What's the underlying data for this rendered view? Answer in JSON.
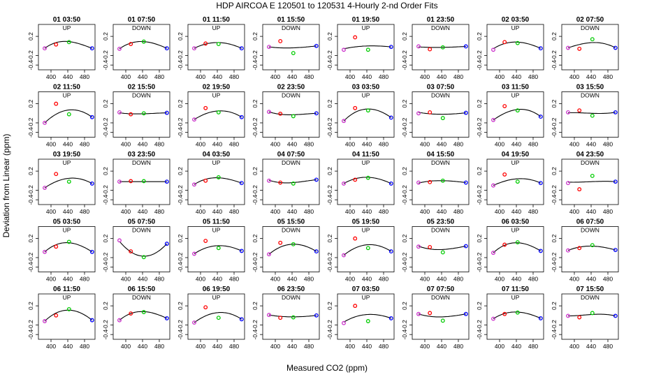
{
  "figure": {
    "title": "HDP   AIRCOA E   120501 to 120531   4-Hourly 2-nd Order Fits",
    "xlabel": "Measured CO2 (ppm)",
    "ylabel": "Deviation from Linear (ppm)"
  },
  "axes": {
    "xlim": [
      370,
      505
    ],
    "ylim": [
      -0.5,
      0.45
    ],
    "xticks": [
      400,
      440,
      480
    ],
    "yticks": [
      0.2,
      -0.2,
      -0.4
    ],
    "ytick_labels": [
      "0.2",
      "-0.2",
      "-0.4"
    ]
  },
  "standards_x": [
    385,
    412,
    443,
    498
  ],
  "colors": {
    "std1": "#cc33cc",
    "std2": "#ff0000",
    "std3": "#00cc00",
    "std4": "#0000ff",
    "curve": "#000000"
  },
  "chart_data": [
    {
      "type": "scatter",
      "title": "01 03:50",
      "label": "UP",
      "y": [
        -0.05,
        0.03,
        0.08,
        -0.05
      ],
      "curve": [
        -0.05,
        0.07,
        0.09,
        -0.05
      ]
    },
    {
      "type": "scatter",
      "title": "01 07:50",
      "label": "DOWN",
      "y": [
        -0.06,
        0.04,
        0.09,
        -0.05
      ],
      "curve": [
        -0.06,
        0.06,
        0.09,
        -0.05
      ]
    },
    {
      "type": "scatter",
      "title": "01 11:50",
      "label": "UP",
      "y": [
        -0.05,
        0.05,
        0.04,
        -0.05
      ],
      "curve": [
        -0.05,
        0.04,
        0.07,
        -0.05
      ]
    },
    {
      "type": "scatter",
      "title": "01 15:50",
      "label": "DOWN",
      "y": [
        -0.02,
        0.1,
        -0.15,
        0.0
      ],
      "curve": [
        -0.02,
        -0.04,
        -0.04,
        0.0
      ]
    },
    {
      "type": "scatter",
      "title": "01 19:50",
      "label": "UP",
      "y": [
        -0.08,
        0.18,
        -0.08,
        -0.02
      ],
      "curve": [
        -0.06,
        -0.02,
        0.0,
        -0.02
      ]
    },
    {
      "type": "scatter",
      "title": "01 23:50",
      "label": "DOWN",
      "y": [
        -0.01,
        -0.07,
        -0.03,
        -0.01
      ],
      "curve": [
        -0.02,
        -0.03,
        -0.03,
        -0.01
      ]
    },
    {
      "type": "scatter",
      "title": "02 03:50",
      "label": "UP",
      "y": [
        -0.08,
        0.08,
        0.06,
        -0.05
      ],
      "curve": [
        -0.06,
        0.05,
        0.08,
        -0.05
      ]
    },
    {
      "type": "scatter",
      "title": "02 07:50",
      "label": "DOWN",
      "y": [
        -0.04,
        -0.06,
        0.14,
        -0.04
      ],
      "curve": [
        -0.04,
        0.03,
        0.07,
        -0.04
      ]
    },
    {
      "type": "scatter",
      "title": "02 11:50",
      "label": "UP",
      "y": [
        -0.2,
        0.2,
        -0.02,
        -0.08
      ],
      "curve": [
        -0.2,
        -0.02,
        0.07,
        -0.08
      ]
    },
    {
      "type": "scatter",
      "title": "02 15:50",
      "label": "DOWN",
      "y": [
        0.02,
        -0.02,
        0.0,
        0.01
      ],
      "curve": [
        0.01,
        -0.01,
        -0.01,
        0.01
      ]
    },
    {
      "type": "scatter",
      "title": "02 19:50",
      "label": "UP",
      "y": [
        -0.13,
        0.11,
        0.02,
        -0.08
      ],
      "curve": [
        -0.13,
        -0.01,
        0.05,
        -0.08
      ]
    },
    {
      "type": "scatter",
      "title": "02 23:50",
      "label": "DOWN",
      "y": [
        0.03,
        -0.01,
        -0.06,
        0.0
      ],
      "curve": [
        0.03,
        -0.02,
        -0.03,
        0.0
      ]
    },
    {
      "type": "scatter",
      "title": "03 03:50",
      "label": "UP",
      "y": [
        -0.16,
        0.11,
        0.06,
        -0.09
      ],
      "curve": [
        -0.16,
        0.02,
        0.09,
        -0.09
      ]
    },
    {
      "type": "scatter",
      "title": "03 07:50",
      "label": "DOWN",
      "y": [
        0.0,
        0.02,
        -0.1,
        0.01
      ],
      "curve": [
        0.02,
        -0.01,
        -0.02,
        0.01
      ]
    },
    {
      "type": "scatter",
      "title": "03 11:50",
      "label": "UP",
      "y": [
        -0.14,
        0.15,
        0.06,
        -0.07
      ],
      "curve": [
        -0.14,
        0.0,
        0.08,
        -0.07
      ]
    },
    {
      "type": "scatter",
      "title": "03 15:50",
      "label": "DOWN",
      "y": [
        0.02,
        0.06,
        -0.05,
        0.02
      ],
      "curve": [
        0.01,
        0.01,
        0.0,
        0.02
      ]
    },
    {
      "type": "scatter",
      "title": "03 19:50",
      "label": "UP",
      "y": [
        -0.15,
        0.14,
        -0.02,
        -0.06
      ],
      "curve": [
        -0.15,
        -0.02,
        0.05,
        -0.06
      ]
    },
    {
      "type": "scatter",
      "title": "03 23:50",
      "label": "DOWN",
      "y": [
        -0.02,
        -0.01,
        -0.01,
        -0.02
      ],
      "curve": [
        -0.02,
        -0.02,
        -0.02,
        -0.02
      ]
    },
    {
      "type": "scatter",
      "title": "04 03:50",
      "label": "UP",
      "y": [
        -0.08,
        0.0,
        0.07,
        -0.05
      ],
      "curve": [
        -0.08,
        0.03,
        0.06,
        -0.05
      ]
    },
    {
      "type": "scatter",
      "title": "04 07:50",
      "label": "DOWN",
      "y": [
        0.0,
        -0.04,
        -0.06,
        0.02
      ],
      "curve": [
        0.01,
        -0.04,
        -0.04,
        0.02
      ]
    },
    {
      "type": "scatter",
      "title": "04 11:50",
      "label": "UP",
      "y": [
        -0.06,
        0.02,
        0.06,
        -0.06
      ],
      "curve": [
        -0.06,
        0.04,
        0.07,
        -0.06
      ]
    },
    {
      "type": "scatter",
      "title": "04 15:50",
      "label": "DOWN",
      "y": [
        -0.04,
        -0.03,
        0.0,
        -0.04
      ],
      "curve": [
        -0.05,
        -0.01,
        0.0,
        -0.04
      ]
    },
    {
      "type": "scatter",
      "title": "04 19:50",
      "label": "UP",
      "y": [
        -0.1,
        0.13,
        -0.02,
        -0.05
      ],
      "curve": [
        -0.1,
        -0.01,
        0.04,
        -0.05
      ]
    },
    {
      "type": "scatter",
      "title": "04 23:50",
      "label": "DOWN",
      "y": [
        -0.05,
        -0.18,
        0.1,
        -0.02
      ],
      "curve": [
        -0.03,
        -0.03,
        -0.02,
        -0.02
      ]
    },
    {
      "type": "scatter",
      "title": "05 03:50",
      "label": "UP",
      "y": [
        -0.08,
        0.03,
        0.13,
        -0.08
      ],
      "curve": [
        -0.08,
        0.07,
        0.11,
        -0.08
      ]
    },
    {
      "type": "scatter",
      "title": "05 07:50",
      "label": "DOWN",
      "y": [
        0.16,
        -0.07,
        -0.19,
        0.09
      ],
      "curve": [
        0.14,
        -0.08,
        -0.17,
        0.09
      ]
    },
    {
      "type": "scatter",
      "title": "05 11:50",
      "label": "UP",
      "y": [
        -0.12,
        0.15,
        0.0,
        -0.06
      ],
      "curve": [
        -0.12,
        0.0,
        0.05,
        -0.06
      ]
    },
    {
      "type": "scatter",
      "title": "05 15:50",
      "label": "DOWN",
      "y": [
        -0.13,
        0.11,
        0.08,
        -0.07
      ],
      "curve": [
        -0.13,
        0.02,
        0.08,
        -0.07
      ]
    },
    {
      "type": "scatter",
      "title": "05 19:50",
      "label": "UP",
      "y": [
        -0.15,
        0.2,
        0.0,
        -0.07
      ],
      "curve": [
        -0.15,
        0.0,
        0.07,
        -0.07
      ]
    },
    {
      "type": "scatter",
      "title": "05 23:50",
      "label": "DOWN",
      "y": [
        0.03,
        0.02,
        -0.09,
        0.04
      ],
      "curve": [
        0.04,
        -0.02,
        -0.03,
        0.04
      ]
    },
    {
      "type": "scatter",
      "title": "06 03:50",
      "label": "UP",
      "y": [
        -0.1,
        0.07,
        0.12,
        -0.06
      ],
      "curve": [
        -0.1,
        0.06,
        0.11,
        -0.06
      ]
    },
    {
      "type": "scatter",
      "title": "06 07:50",
      "label": "DOWN",
      "y": [
        -0.05,
        0.0,
        0.06,
        -0.04
      ],
      "curve": [
        -0.05,
        0.02,
        0.04,
        -0.04
      ]
    },
    {
      "type": "scatter",
      "title": "06 11:50",
      "label": "UP",
      "y": [
        -0.12,
        0.0,
        0.13,
        -0.1
      ],
      "curve": [
        -0.12,
        0.05,
        0.11,
        -0.1
      ]
    },
    {
      "type": "scatter",
      "title": "06 15:50",
      "label": "DOWN",
      "y": [
        -0.1,
        0.04,
        0.07,
        -0.06
      ],
      "curve": [
        -0.1,
        0.04,
        0.08,
        -0.06
      ]
    },
    {
      "type": "scatter",
      "title": "06 19:50",
      "label": "UP",
      "y": [
        -0.15,
        0.17,
        -0.05,
        -0.08
      ],
      "curve": [
        -0.15,
        -0.01,
        0.06,
        -0.08
      ]
    },
    {
      "type": "scatter",
      "title": "06 23:50",
      "label": "DOWN",
      "y": [
        0.01,
        -0.05,
        -0.04,
        0.0
      ],
      "curve": [
        0.01,
        -0.02,
        -0.03,
        0.0
      ]
    },
    {
      "type": "scatter",
      "title": "07 03:50",
      "label": "UP",
      "y": [
        -0.16,
        0.2,
        -0.12,
        -0.06
      ],
      "curve": [
        -0.14,
        -0.03,
        0.02,
        -0.06
      ]
    },
    {
      "type": "scatter",
      "title": "07 07:50",
      "label": "DOWN",
      "y": [
        0.03,
        0.05,
        -0.11,
        0.03
      ],
      "curve": [
        0.03,
        -0.02,
        -0.03,
        0.03
      ]
    },
    {
      "type": "scatter",
      "title": "07 11:50",
      "label": "UP",
      "y": [
        -0.07,
        0.03,
        0.06,
        -0.06
      ],
      "curve": [
        -0.07,
        0.04,
        0.07,
        -0.06
      ]
    },
    {
      "type": "scatter",
      "title": "07 15:50",
      "label": "DOWN",
      "y": [
        -0.01,
        -0.04,
        0.05,
        -0.01
      ],
      "curve": [
        -0.01,
        0.0,
        0.02,
        -0.01
      ]
    }
  ]
}
